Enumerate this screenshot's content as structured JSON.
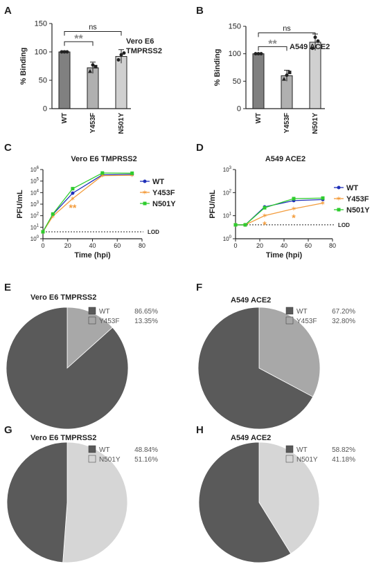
{
  "panels": {
    "A": {
      "letter": "A"
    },
    "B": {
      "letter": "B"
    },
    "C": {
      "letter": "C"
    },
    "D": {
      "letter": "D"
    },
    "E": {
      "letter": "E"
    },
    "F": {
      "letter": "F"
    },
    "G": {
      "letter": "G"
    },
    "H": {
      "letter": "H"
    }
  },
  "colors": {
    "bar_dark": "#808080",
    "bar_mid": "#b0b0b0",
    "bar_light": "#d0d0d0",
    "WT": "#1f2fb8",
    "Y453F": "#f39c3c",
    "N501Y": "#2ecc2e",
    "pie_dark": "#5a5a5a",
    "pie_mid": "#a8a8a8",
    "pie_light": "#d6d6d6"
  },
  "chart_data": [
    {
      "id": "A",
      "type": "bar",
      "title": "Vero E6\nTMPRSS2",
      "ylabel": "% Binding",
      "ylim": [
        0,
        150
      ],
      "yticks": [
        0,
        50,
        100,
        150
      ],
      "categories": [
        "WT",
        "Y453F",
        "N501Y"
      ],
      "values": [
        100,
        72,
        92
      ],
      "errors": [
        2,
        10,
        12
      ],
      "points": [
        [
          100,
          100,
          100
        ],
        [
          66,
          77,
          74
        ],
        [
          86,
          95,
          98
        ]
      ],
      "annotations": [
        {
          "text": "**",
          "between": [
            "WT",
            "Y453F"
          ],
          "level": 118
        },
        {
          "text": "ns",
          "between": [
            "WT",
            "N501Y"
          ],
          "level": 136
        }
      ]
    },
    {
      "id": "B",
      "type": "bar",
      "title": "A549 ACE2",
      "ylabel": "% Binding",
      "ylim": [
        0,
        150
      ],
      "yticks": [
        0,
        50,
        100,
        150
      ],
      "categories": [
        "WT",
        "Y453F",
        "N501Y"
      ],
      "values": [
        100,
        60,
        121
      ],
      "errors": [
        1,
        10,
        15
      ],
      "points": [
        [
          100,
          100,
          100
        ],
        [
          54,
          61,
          66
        ],
        [
          110,
          130,
          123
        ]
      ],
      "annotations": [
        {
          "text": "**",
          "between": [
            "WT",
            "Y453F"
          ],
          "level": 113
        },
        {
          "text": "ns",
          "between": [
            "WT",
            "N501Y"
          ],
          "level": 138
        }
      ]
    },
    {
      "id": "C",
      "type": "line",
      "title": "Vero E6 TMPRSS2",
      "xlabel": "Time (hpi)",
      "ylabel": "PFU/mL",
      "yscale": "log",
      "xlim": [
        0,
        80
      ],
      "xticks": [
        0,
        20,
        40,
        60,
        80
      ],
      "ylim_exp": [
        0,
        6
      ],
      "lod": 4,
      "lod_label": "LOD",
      "legend": [
        "WT",
        "Y453F",
        "N501Y"
      ],
      "x": [
        0,
        8,
        24,
        48,
        72
      ],
      "series": [
        {
          "name": "WT",
          "values": [
            4,
            130,
            9000,
            350000,
            380000
          ]
        },
        {
          "name": "Y453F",
          "values": [
            4,
            90,
            3000,
            300000,
            320000
          ]
        },
        {
          "name": "N501Y",
          "values": [
            4,
            140,
            22000,
            500000,
            480000
          ]
        }
      ],
      "significance": [
        {
          "text": "**",
          "x": 24
        }
      ]
    },
    {
      "id": "D",
      "type": "line",
      "title": "A549 ACE2",
      "xlabel": "Time (hpi)",
      "ylabel": "PFU/mL",
      "yscale": "log",
      "xlim": [
        0,
        80
      ],
      "xticks": [
        0,
        20,
        40,
        60,
        80
      ],
      "ylim_exp": [
        0,
        3
      ],
      "lod": 4,
      "lod_label": "LOD",
      "legend": [
        "WT",
        "Y453F",
        "N501Y"
      ],
      "x": [
        0,
        8,
        24,
        48,
        72
      ],
      "series": [
        {
          "name": "WT",
          "values": [
            4,
            4,
            24,
            45,
            50
          ]
        },
        {
          "name": "Y453F",
          "values": [
            4,
            4,
            10,
            20,
            35
          ]
        },
        {
          "name": "N501Y",
          "values": [
            4,
            4,
            22,
            55,
            58
          ]
        }
      ],
      "significance": [
        {
          "text": "*",
          "x": 24
        },
        {
          "text": "*",
          "x": 48
        }
      ]
    },
    {
      "id": "E",
      "type": "pie",
      "title": "Vero E6 TMPRSS2",
      "slices": [
        {
          "label": "WT",
          "value": 86.65,
          "pct": "86.65%"
        },
        {
          "label": "Y453F",
          "value": 13.35,
          "pct": "13.35%"
        }
      ]
    },
    {
      "id": "F",
      "type": "pie",
      "title": "A549 ACE2",
      "slices": [
        {
          "label": "WT",
          "value": 67.2,
          "pct": "67.20%"
        },
        {
          "label": "Y453F",
          "value": 32.8,
          "pct": "32.80%"
        }
      ]
    },
    {
      "id": "G",
      "type": "pie",
      "title": "Vero E6 TMPRSS2",
      "slices": [
        {
          "label": "WT",
          "value": 48.84,
          "pct": "48.84%"
        },
        {
          "label": "N501Y",
          "value": 51.16,
          "pct": "51.16%"
        }
      ]
    },
    {
      "id": "H",
      "type": "pie",
      "title": "A549 ACE2",
      "slices": [
        {
          "label": "WT",
          "value": 58.82,
          "pct": "58.82%"
        },
        {
          "label": "N501Y",
          "value": 41.18,
          "pct": "41.18%"
        }
      ]
    }
  ]
}
